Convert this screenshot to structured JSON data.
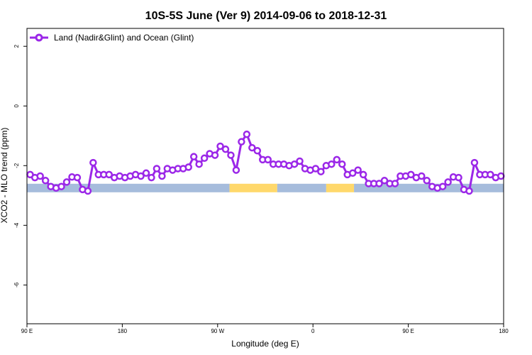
{
  "chart_data": {
    "type": "line",
    "title": "10S-5S June (Ver 9)   2014-09-06 to 2018-12-31",
    "xlabel": "Longitude (deg E)",
    "ylabel": "XCO2 - MLO trend (ppm)",
    "xlim": [
      90,
      450
    ],
    "ylim": [
      -7.3,
      2.6
    ],
    "x_ticks": [
      {
        "value": 90,
        "label": "90 E"
      },
      {
        "value": 162,
        "label": "180"
      },
      {
        "value": 234,
        "label": "90 W"
      },
      {
        "value": 306,
        "label": "0"
      },
      {
        "value": 378,
        "label": "90 E"
      },
      {
        "value": 450,
        "label": "180"
      }
    ],
    "y_ticks": [
      {
        "value": 2,
        "label": "2"
      },
      {
        "value": 0,
        "label": "0"
      },
      {
        "value": -2,
        "label": "-2"
      },
      {
        "value": -4,
        "label": "-4"
      },
      {
        "value": -6,
        "label": "-6"
      }
    ],
    "legend": {
      "position": "top-left"
    },
    "series": [
      {
        "name": "Land (Nadir&Glint) and Ocean (Glint)",
        "color": "#9b27e8",
        "x": [
          92.4,
          96.0,
          100.0,
          104.0,
          108.0,
          112.0,
          116.0,
          120.0,
          124.0,
          128.0,
          132.0,
          136.0,
          140.0,
          144.0,
          148.0,
          152.0,
          156.0,
          160.0,
          164.0,
          168.0,
          172.0,
          176.0,
          180.0,
          184.0,
          188.0,
          192.0,
          196.0,
          200.0,
          204.0,
          208.0,
          212.0,
          216.0,
          220.0,
          224.0,
          228.0,
          232.0,
          236.0,
          240.0,
          244.0,
          248.0,
          252.0,
          256.0,
          260.0,
          264.0,
          268.0,
          272.0,
          276.0,
          280.0,
          284.0,
          288.0,
          292.0,
          296.0,
          300.0,
          304.0,
          308.0,
          312.0,
          316.0,
          320.0,
          324.0,
          328.0,
          332.0,
          336.0,
          340.0,
          344.0,
          348.0,
          352.0,
          356.0,
          360.0,
          364.0,
          368.0,
          372.0,
          376.0,
          380.0,
          384.0,
          388.0,
          392.0,
          396.0,
          400.0,
          404.0,
          408.0,
          412.0,
          416.0,
          420.0,
          424.0,
          428.0,
          432.0,
          436.0,
          440.0,
          444.0,
          448.0
        ],
        "y": [
          -2.3,
          -2.4,
          -2.35,
          -2.5,
          -2.7,
          -2.75,
          -2.7,
          -2.55,
          -2.38,
          -2.4,
          -2.8,
          -2.85,
          -1.9,
          -2.3,
          -2.3,
          -2.3,
          -2.4,
          -2.35,
          -2.4,
          -2.35,
          -2.3,
          -2.35,
          -2.25,
          -2.4,
          -2.1,
          -2.35,
          -2.1,
          -2.15,
          -2.1,
          -2.1,
          -2.05,
          -1.7,
          -1.95,
          -1.75,
          -1.6,
          -1.65,
          -1.35,
          -1.45,
          -1.65,
          -2.15,
          -1.2,
          -0.95,
          -1.4,
          -1.5,
          -1.8,
          -1.8,
          -1.95,
          -1.95,
          -1.95,
          -2.0,
          -1.95,
          -1.85,
          -2.1,
          -2.15,
          -2.1,
          -2.2,
          -2.0,
          -1.95,
          -1.8,
          -1.95,
          -2.3,
          -2.25,
          -2.15,
          -2.3,
          -2.6,
          -2.6,
          -2.6,
          -2.5,
          -2.6,
          -2.6,
          -2.35,
          -2.35,
          -2.3,
          -2.4,
          -2.35,
          -2.5,
          -2.7,
          -2.75,
          -2.7,
          -2.55,
          -2.38,
          -2.4,
          -2.8,
          -2.85,
          -1.9,
          -2.3,
          -2.3,
          -2.3,
          -2.4,
          -2.35
        ]
      }
    ],
    "surface_band": {
      "y_center": -2.75,
      "colors": {
        "land": "#ffd86b",
        "ocean": "#a6bcdc"
      },
      "segments": [
        {
          "type": "ocean",
          "x0": 90,
          "x1": 243
        },
        {
          "type": "land",
          "x0": 243,
          "x1": 279
        },
        {
          "type": "ocean",
          "x0": 279,
          "x1": 316
        },
        {
          "type": "land",
          "x0": 316,
          "x1": 337
        },
        {
          "type": "ocean",
          "x0": 337,
          "x1": 450
        }
      ]
    }
  }
}
